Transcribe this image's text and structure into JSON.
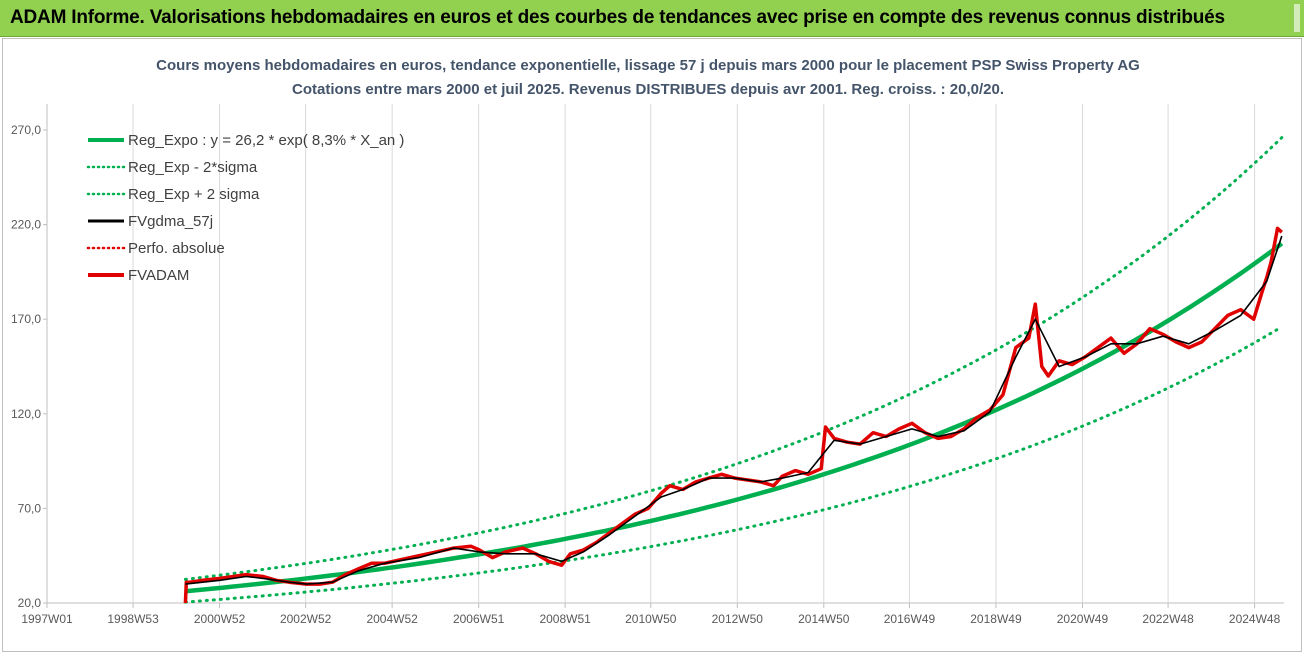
{
  "banner": {
    "title": "ADAM Informe. Valorisations hebdomadaires en euros et des courbes de tendances avec prise en compte des revenus connus distribués"
  },
  "colors": {
    "banner_bg": "#92d050",
    "trend": "#00b050",
    "actual": "#e00000",
    "smoothed": "#000000"
  },
  "chart_data": {
    "type": "line",
    "title": "Cours moyens hebdomadaires en euros, tendance exponentielle, lissage 57 j depuis mars 2000 pour le placement PSP Swiss Property AG",
    "subtitle": "Cotations entre mars 2000 et juil 2025. Revenus DISTRIBUES depuis avr 2001. Reg. croiss. : 20,0/20.",
    "xlabel": "",
    "ylabel": "",
    "x_range": [
      1997.0,
      2025.6
    ],
    "ylim": [
      20,
      290
    ],
    "y_ticks": [
      20,
      70,
      120,
      170,
      220,
      270
    ],
    "y_tick_labels": [
      "20,0",
      "70,0",
      "120,0",
      "170,0",
      "220,0",
      "270,0"
    ],
    "x_ticks": [
      1997.0,
      1998.99,
      2000.99,
      2002.98,
      2004.98,
      2006.98,
      2008.98,
      2010.96,
      2012.96,
      2014.96,
      2016.94,
      2018.94,
      2020.94,
      2022.92,
      2024.92
    ],
    "x_tick_labels": [
      "1997W01",
      "1998W53",
      "2000W52",
      "2002W52",
      "2004W52",
      "2006W51",
      "2008W51",
      "2010W50",
      "2012W50",
      "2014W50",
      "2016W49",
      "2018W49",
      "2020W49",
      "2022W48",
      "2024W48"
    ],
    "grid": {
      "vertical": true,
      "horizontal": false
    },
    "legend_position": "top-left",
    "legend": [
      {
        "label": "Reg_Expo : y = 26,2 * exp( 8,3% *  X_an )",
        "style": "solid-thick",
        "color": "#00b050"
      },
      {
        "label": "Reg_Exp - 2*sigma",
        "style": "dotted",
        "color": "#00b050"
      },
      {
        "label": "Reg_Exp + 2 sigma",
        "style": "dotted",
        "color": "#00b050"
      },
      {
        "label": "FVgdma_57j",
        "style": "solid",
        "color": "#000000"
      },
      {
        "label": "Perfo. absolue",
        "style": "dotted",
        "color": "#e00000"
      },
      {
        "label": "FVADAM",
        "style": "solid-thick",
        "color": "#e00000"
      }
    ],
    "trend": {
      "start_x": 2000.2,
      "end_x": 2025.55,
      "start_value": 26.2,
      "end_value": 210.0
    },
    "band_lower": {
      "start_value": 20.5,
      "end_value": 166.0
    },
    "band_upper": {
      "start_value": 32.5,
      "end_value": 266.0
    },
    "series": [
      {
        "name": "FVADAM",
        "x": [
          2000.2,
          2000.22,
          2000.3,
          2000.6,
          2001.0,
          2001.3,
          2001.6,
          2002.0,
          2002.3,
          2002.6,
          2003.0,
          2003.3,
          2003.6,
          2003.9,
          2004.2,
          2004.5,
          2004.8,
          2005.2,
          2005.6,
          2006.0,
          2006.4,
          2006.8,
          2007.0,
          2007.3,
          2007.6,
          2008.0,
          2008.3,
          2008.6,
          2008.9,
          2009.1,
          2009.4,
          2009.7,
          2010.0,
          2010.3,
          2010.6,
          2010.9,
          2011.2,
          2011.4,
          2011.7,
          2012.0,
          2012.3,
          2012.6,
          2012.9,
          2013.2,
          2013.5,
          2013.8,
          2014.0,
          2014.3,
          2014.6,
          2014.9,
          2015.0,
          2015.2,
          2015.5,
          2015.8,
          2016.1,
          2016.4,
          2016.7,
          2017.0,
          2017.3,
          2017.6,
          2017.9,
          2018.2,
          2018.5,
          2018.8,
          2019.1,
          2019.4,
          2019.7,
          2019.85,
          2020.0,
          2020.15,
          2020.4,
          2020.7,
          2021.0,
          2021.3,
          2021.6,
          2021.9,
          2022.2,
          2022.5,
          2022.8,
          2023.1,
          2023.4,
          2023.7,
          2024.0,
          2024.3,
          2024.6,
          2024.9,
          2025.1,
          2025.2,
          2025.3,
          2025.45,
          2025.55
        ],
        "values": [
          20,
          31,
          31,
          32,
          33,
          34,
          35,
          34,
          32,
          31,
          30,
          30,
          31,
          35,
          38,
          41,
          41,
          43,
          45,
          47,
          49,
          50,
          48,
          44,
          47,
          49,
          46,
          42,
          40,
          46,
          48,
          52,
          57,
          62,
          67,
          70,
          78,
          82,
          80,
          84,
          86,
          88,
          86,
          85,
          84,
          82,
          87,
          90,
          88,
          91,
          113,
          107,
          105,
          104,
          110,
          108,
          112,
          115,
          110,
          107,
          108,
          112,
          118,
          122,
          130,
          155,
          160,
          178,
          145,
          140,
          148,
          146,
          150,
          155,
          160,
          152,
          157,
          165,
          162,
          158,
          155,
          158,
          165,
          172,
          175,
          170,
          185,
          192,
          200,
          218,
          216
        ]
      },
      {
        "name": "FVgdma_57j",
        "x": [
          2000.2,
          2000.6,
          2001.0,
          2001.6,
          2002.0,
          2002.6,
          2003.0,
          2003.6,
          2004.2,
          2004.8,
          2005.6,
          2006.4,
          2007.0,
          2007.6,
          2008.3,
          2008.9,
          2009.4,
          2010.0,
          2010.6,
          2011.2,
          2011.7,
          2012.3,
          2012.9,
          2013.5,
          2014.0,
          2014.6,
          2015.2,
          2015.8,
          2016.4,
          2017.0,
          2017.6,
          2018.2,
          2018.8,
          2019.4,
          2019.85,
          2020.4,
          2021.0,
          2021.6,
          2022.2,
          2022.8,
          2023.4,
          2024.0,
          2024.6,
          2025.2,
          2025.55
        ],
        "values": [
          30,
          31,
          32,
          34,
          33,
          31,
          30,
          31,
          37,
          41,
          44,
          49,
          47,
          46,
          46,
          42,
          47,
          56,
          66,
          76,
          80,
          86,
          86,
          84,
          86,
          89,
          106,
          104,
          108,
          112,
          108,
          111,
          121,
          150,
          170,
          145,
          150,
          157,
          157,
          161,
          157,
          164,
          172,
          190,
          214
        ]
      }
    ]
  }
}
